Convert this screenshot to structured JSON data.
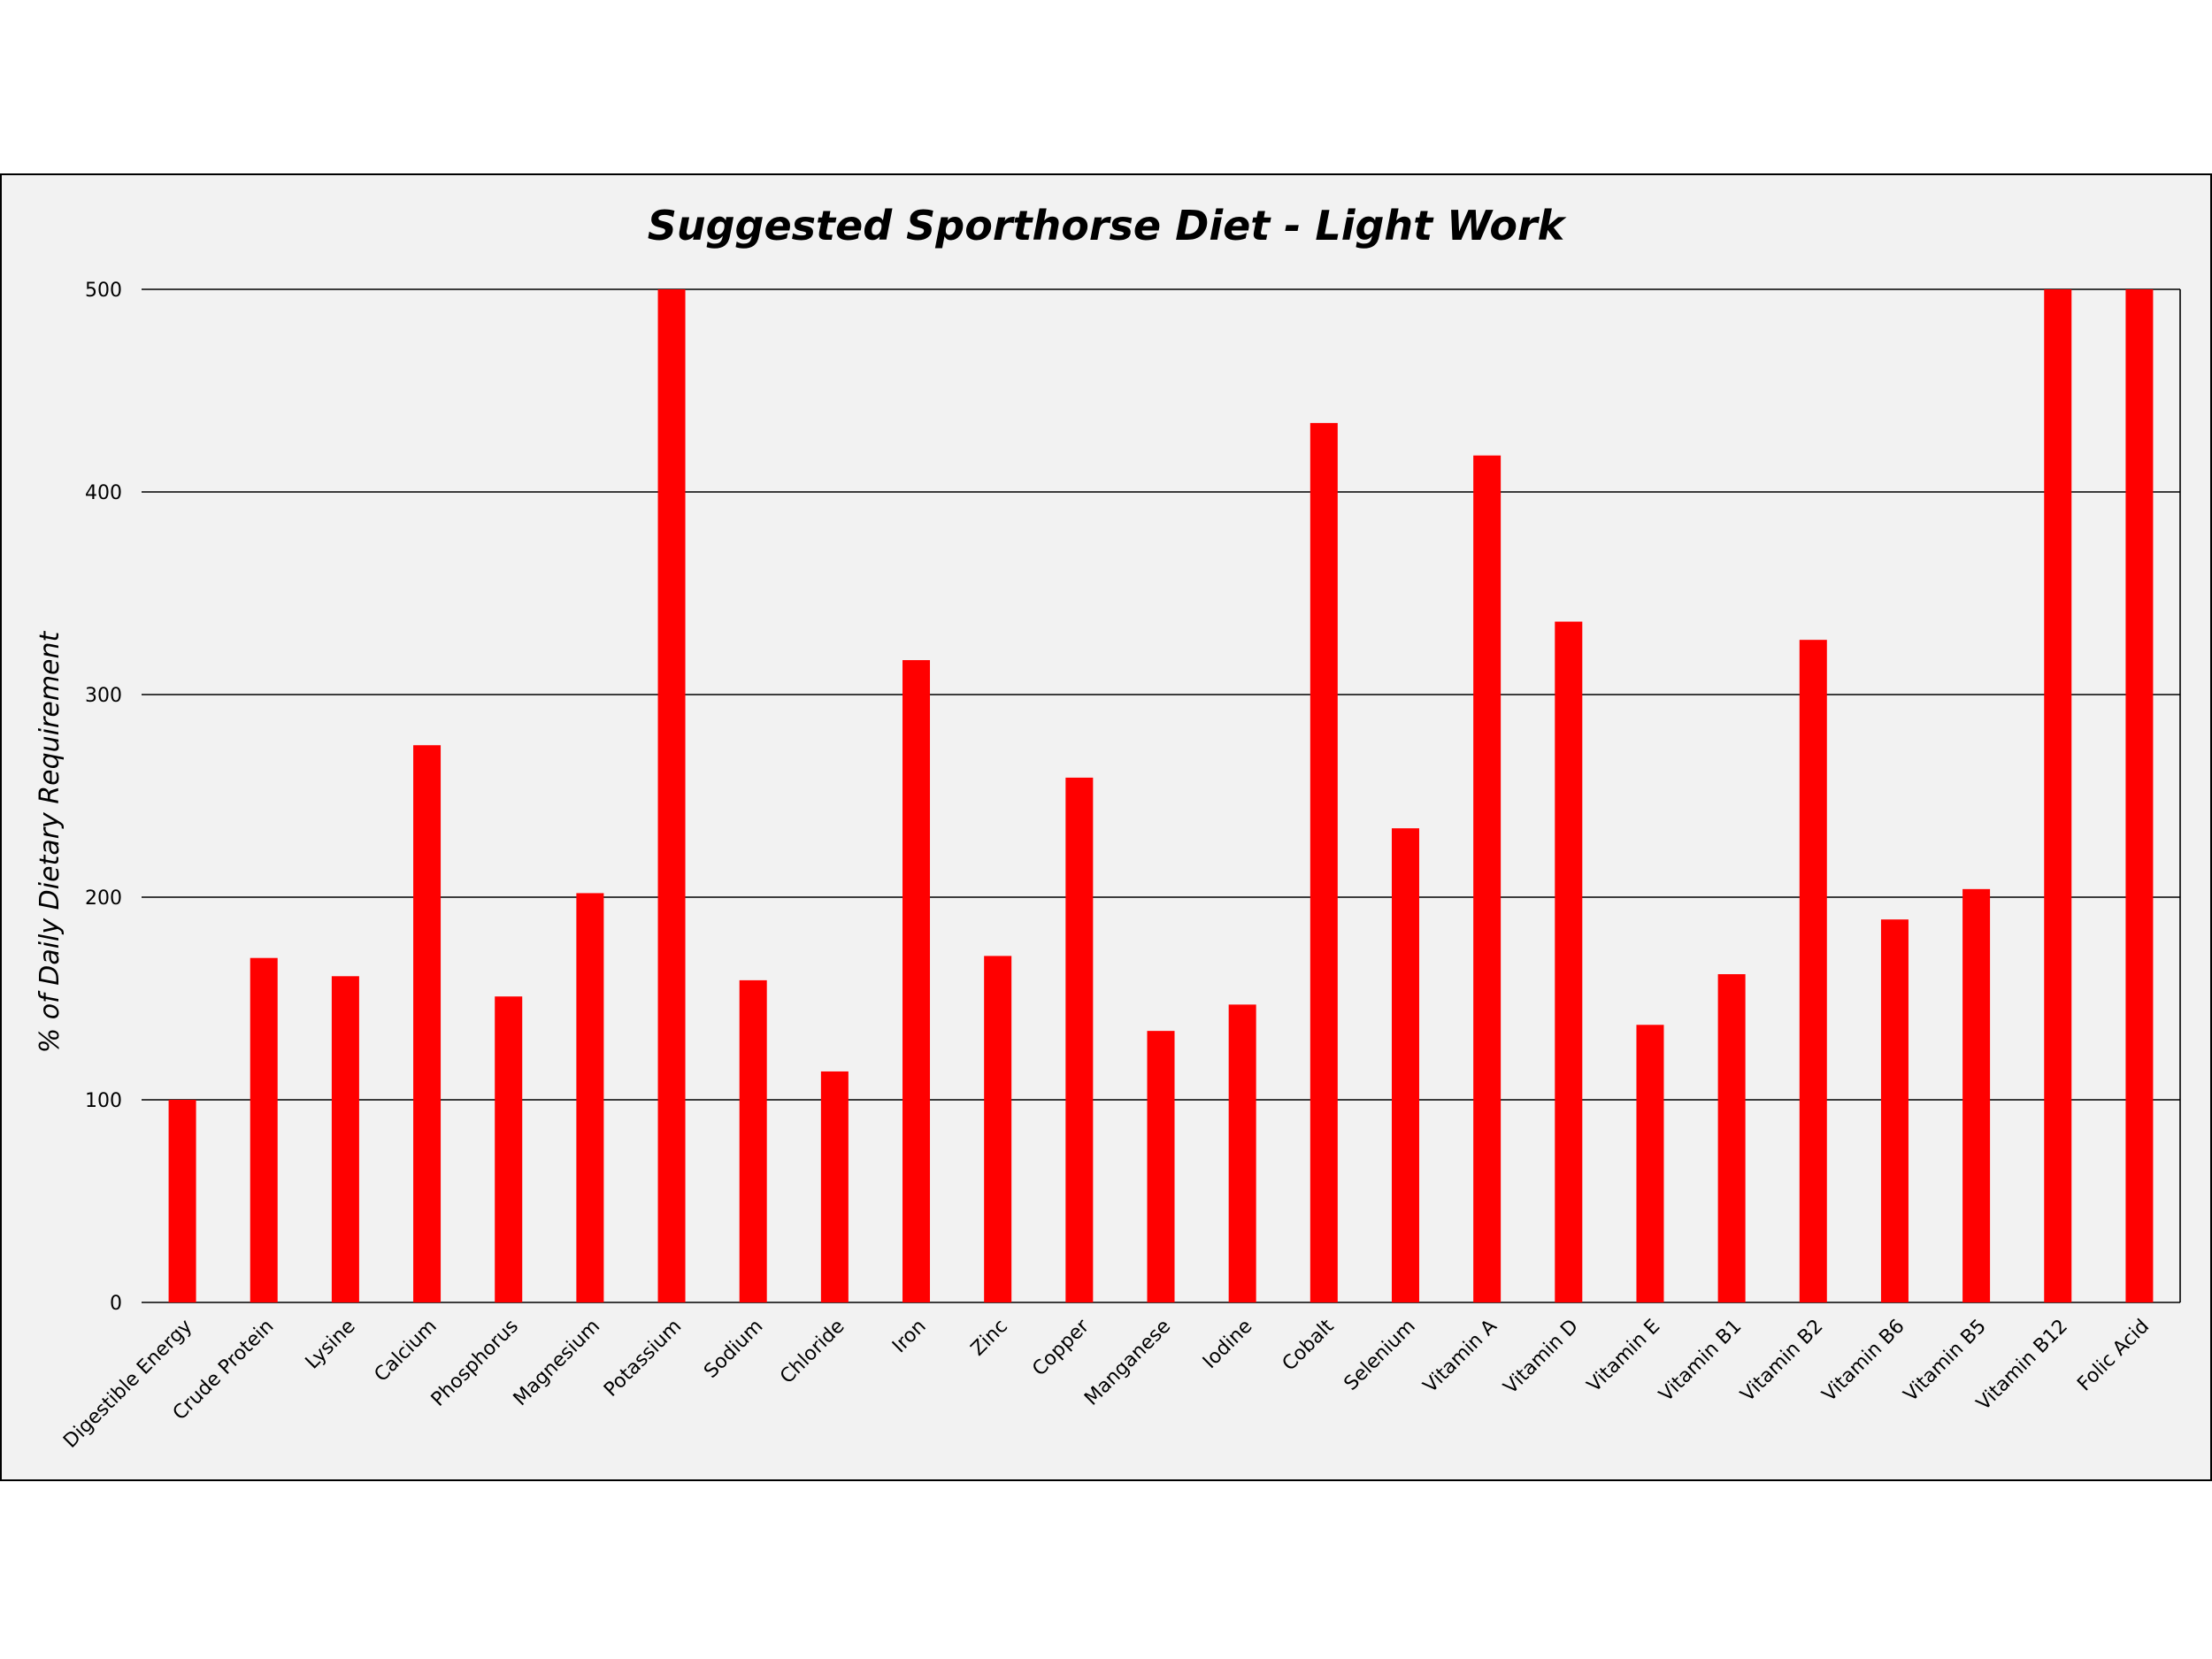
{
  "chart_data": {
    "type": "bar",
    "title": "Suggested Sporthorse Diet - Light Work",
    "xlabel": "",
    "ylabel": "% of Daily Dietary Requirement",
    "ylim": [
      0,
      500
    ],
    "yticks": [
      "0",
      "100",
      "200",
      "300",
      "400",
      "500"
    ],
    "grid": true,
    "legend": "none",
    "bar_color": "#ff0000",
    "categories": [
      "Digestible Energy",
      "Crude Protein",
      "Lysine",
      "Calcium",
      "Phosphorus",
      "Magnesium",
      "Potassium",
      "Sodium",
      "Chloride",
      "Iron",
      "Zinc",
      "Copper",
      "Manganese",
      "Iodine",
      "Cobalt",
      "Selenium",
      "Vitamin A",
      "Vitamin D",
      "Vitamin E",
      "Vitamin B1",
      "Vitamin B2",
      "Vitamin B6",
      "Vitamin B5",
      "Vitamin B12",
      "Folic Acid"
    ],
    "values": [
      100,
      170,
      161,
      275,
      151,
      202,
      500,
      159,
      114,
      317,
      171,
      259,
      134,
      147,
      434,
      234,
      418,
      336,
      137,
      162,
      327,
      189,
      204,
      500,
      500
    ]
  }
}
